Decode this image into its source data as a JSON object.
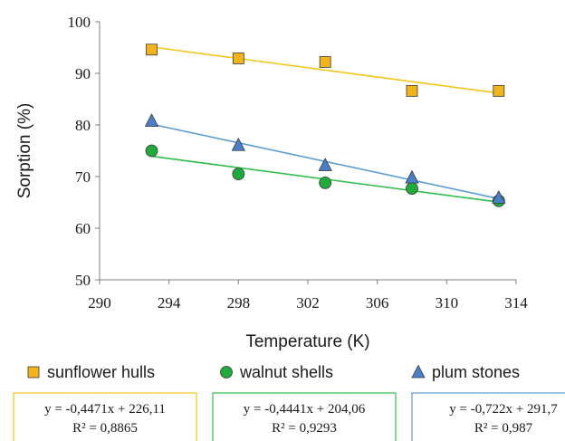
{
  "chart_data": {
    "type": "scatter",
    "title": "",
    "xlabel": "Temperature (K)",
    "ylabel": "Sorption (%)",
    "xlim": [
      290,
      314
    ],
    "ylim": [
      50,
      100
    ],
    "xticks": [
      290,
      294,
      298,
      302,
      306,
      310,
      314
    ],
    "yticks": [
      50,
      60,
      70,
      80,
      90,
      100
    ],
    "grid": false,
    "legend_position": "bottom",
    "series": [
      {
        "name": "sunflower hulls",
        "marker": "square",
        "color": "#F2B418",
        "line_color": "#F5C518",
        "x": [
          293,
          298,
          303,
          308,
          313
        ],
        "y": [
          94.6,
          92.9,
          92.2,
          86.6,
          86.6
        ],
        "trendline": {
          "slope": -0.4471,
          "intercept": 226.11
        },
        "equation": "y = -0,4471x + 226,11",
        "r2": "R² = 0,8865"
      },
      {
        "name": "walnut shells",
        "marker": "circle",
        "color": "#1FAA3C",
        "line_color": "#2DBE4A",
        "x": [
          293,
          298,
          303,
          308,
          313
        ],
        "y": [
          75.0,
          70.5,
          68.8,
          67.7,
          65.3
        ],
        "trendline": {
          "slope": -0.4441,
          "intercept": 204.06
        },
        "equation": "y = -0,4441x + 204,06",
        "r2": "R² = 0,9293"
      },
      {
        "name": "plum stones",
        "marker": "triangle",
        "color": "#4A7EC7",
        "line_color": "#5B9BD5",
        "x": [
          293,
          298,
          303,
          308,
          313
        ],
        "y": [
          80.8,
          76.1,
          72.2,
          69.8,
          65.9
        ],
        "trendline": {
          "slope": -0.722,
          "intercept": 291.7
        },
        "equation": "y = -0,722x + 291,7",
        "r2": "R² = 0,987"
      }
    ]
  }
}
